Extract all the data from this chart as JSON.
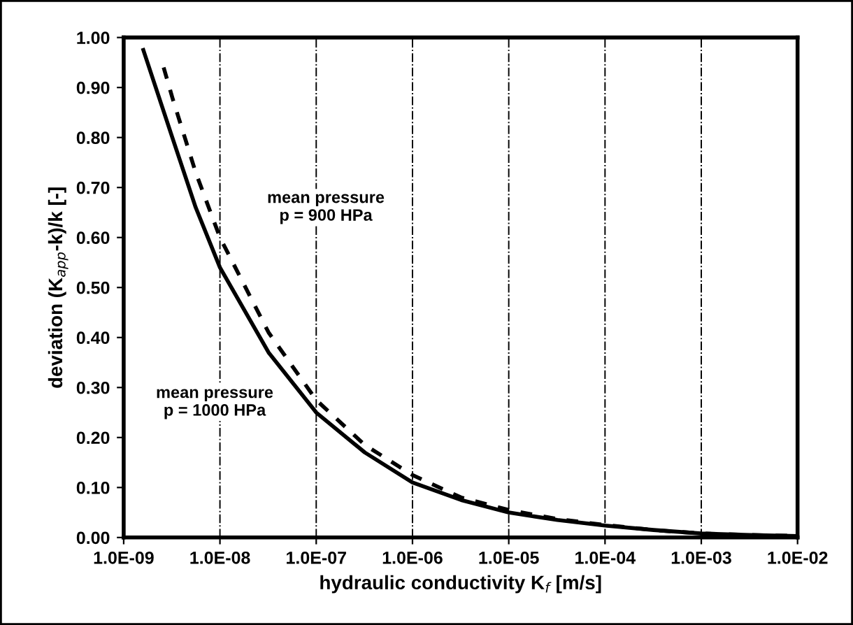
{
  "chart_data": {
    "type": "line",
    "xlabel": "hydraulic conductivity K$_{f}$ [m/s]",
    "ylabel": "deviation (K$_{app}$-k)/k [-]",
    "log": "x",
    "xlim": [
      1e-09,
      0.01
    ],
    "xticks": [
      {
        "value": 1e-09,
        "label": "1.0E-09"
      },
      {
        "value": 1e-08,
        "label": "1.0E-08"
      },
      {
        "value": 1e-07,
        "label": "1.0E-07"
      },
      {
        "value": 1e-06,
        "label": "1.0E-06"
      },
      {
        "value": 1e-05,
        "label": "1.0E-05"
      },
      {
        "value": 0.0001,
        "label": "1.0E-04"
      },
      {
        "value": 0.001,
        "label": "1.0E-03"
      },
      {
        "value": 0.01,
        "label": "1.0E-02"
      }
    ],
    "ylim": [
      0,
      1
    ],
    "yticks": [
      {
        "value": 0,
        "label": "0.00"
      },
      {
        "value": 0.1,
        "label": "0.10"
      },
      {
        "value": 0.2,
        "label": "0.20"
      },
      {
        "value": 0.3,
        "label": "0.30"
      },
      {
        "value": 0.4,
        "label": "0.40"
      },
      {
        "value": 0.5,
        "label": "0.50"
      },
      {
        "value": 0.6,
        "label": "0.60"
      },
      {
        "value": 0.7,
        "label": "0.70"
      },
      {
        "value": 0.8,
        "label": "0.80"
      },
      {
        "value": 0.9,
        "label": "0.90"
      },
      {
        "value": 1.0,
        "label": "1.00"
      }
    ],
    "grid": "x",
    "legend": false,
    "series": [
      {
        "color": "#000000",
        "line_style": "solid",
        "x": [
          1.6e-09,
          3.2e-09,
          5.6e-09,
          1e-08,
          3.2e-08,
          1e-07,
          3.2e-07,
          1e-06,
          3.2e-06,
          1e-05,
          3.2e-05,
          0.0001,
          0.00032,
          0.001,
          0.0032,
          0.01
        ],
        "values": [
          0.975,
          0.8,
          0.66,
          0.54,
          0.37,
          0.25,
          0.17,
          0.11,
          0.075,
          0.05,
          0.035,
          0.024,
          0.015,
          0.008,
          0.005,
          0.003
        ]
      },
      {
        "color": "#000000",
        "line_style": "dashed",
        "x": [
          2.6e-09,
          3.2e-09,
          5.6e-09,
          1e-08,
          3.2e-08,
          1e-07,
          3.2e-07,
          1e-06,
          3.2e-06,
          1e-05,
          3.2e-05,
          0.0001,
          0.00032,
          0.001,
          0.0032,
          0.01
        ],
        "values": [
          0.94,
          0.88,
          0.73,
          0.6,
          0.41,
          0.275,
          0.185,
          0.125,
          0.08,
          0.055,
          0.037,
          0.025,
          0.015,
          0.008,
          0.005,
          0.003
        ]
      }
    ],
    "annotations": [
      "mean pressure\np = 900 HPa",
      "mean pressure\np = 1000 HPa"
    ]
  }
}
